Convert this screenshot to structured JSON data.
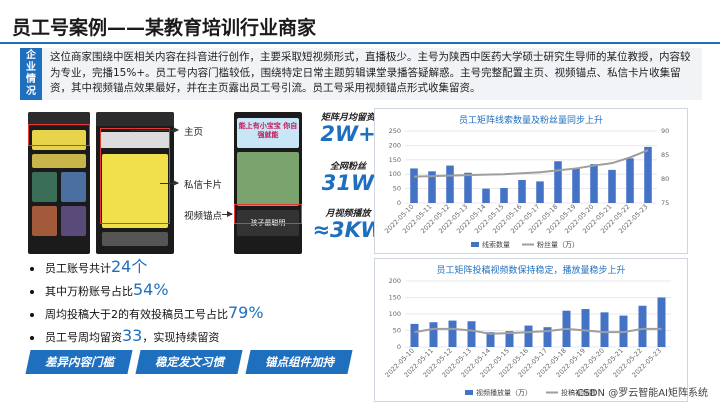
{
  "title": "员工号案例——某教育培训行业商家",
  "intro": {
    "tag_chars": [
      "企",
      "业",
      "情",
      "况"
    ],
    "text": "这位商家围绕中医相关内容在抖音进行创作，主要采取短视频形式，直播极少。主号为陕西中医药大学硕士研究生导师的某位教授，内容较为专业，完播15%+。员工号内容门槛较低，围绕特定日常主题剪辑课堂录播答疑解惑。主号完整配置主页、视频锚点、私信卡片收集留资，其中视频锚点效果最好，并在主页露出员工号引流。员工号采用视频锚点形式收集留资。"
  },
  "annotations": {
    "home": "主页",
    "dm_card": "私信卡片",
    "video_anchor": "视频锚点"
  },
  "phone_text": {
    "banner": "能上有小宝宝 你自强就能",
    "title": "孩子最聪明"
  },
  "stats": [
    {
      "label": "矩阵月均留资",
      "value": "2W+"
    },
    {
      "label": "全网粉丝",
      "value": "31W"
    },
    {
      "label": "月视频播放",
      "value": "≈3KW"
    }
  ],
  "bullets": [
    {
      "pre": "员工账号共计",
      "hl": "24个",
      "post": ""
    },
    {
      "pre": "其中万粉账号占比",
      "hl": "54%",
      "post": ""
    },
    {
      "pre": "周均投稿大于2的有效投稿员工号占比",
      "hl": "79%",
      "post": ""
    },
    {
      "pre": "员工号周均留资",
      "hl": "33",
      "post": "，实现持续留资"
    }
  ],
  "tags": [
    "差异内容门槛",
    "稳定发文习惯",
    "锚点组件加持"
  ],
  "colors": {
    "accent": "#1f6fbf",
    "line": "#9e9e9e",
    "bar": "#4472c4"
  },
  "watermark": "CSDN @罗云智能AI矩阵系统",
  "chart_data": [
    {
      "type": "bar",
      "title": "员工矩阵线索数量及粉丝量同步上升",
      "categories": [
        "2022-05-10",
        "2022-05-11",
        "2022-05-12",
        "2022-05-13",
        "2022-05-14",
        "2022-05-15",
        "2022-05-16",
        "2022-05-17",
        "2022-05-18",
        "2022-05-19",
        "2022-05-20",
        "2022-05-21",
        "2022-05-22",
        "2022-05-23"
      ],
      "series": [
        {
          "name": "线索数量",
          "kind": "bar",
          "axis": "left",
          "values": [
            120,
            110,
            130,
            105,
            50,
            52,
            80,
            75,
            145,
            120,
            135,
            115,
            155,
            195
          ]
        },
        {
          "name": "粉丝量（万）",
          "kind": "line",
          "axis": "right",
          "values": [
            80.5,
            80.6,
            80.7,
            80.8,
            80.9,
            81.0,
            81.2,
            81.4,
            81.8,
            82.2,
            82.8,
            83.3,
            84.5,
            86.0
          ]
        }
      ],
      "y_ticks": [
        "0",
        "50",
        "100",
        "150",
        "200",
        "250"
      ],
      "y2_ticks": [
        "75",
        "80",
        "85",
        "90"
      ],
      "ylim": [
        0,
        250
      ],
      "y2lim": [
        75,
        90
      ],
      "legend": "bottom"
    },
    {
      "type": "bar",
      "title": "员工矩阵投稿视频数保持稳定，播放量稳步上升",
      "categories": [
        "2022-05-10",
        "2022-05-11",
        "2022-05-12",
        "2022-05-13",
        "2022-05-14",
        "2022-05-15",
        "2022-05-16",
        "2022-05-17",
        "2022-05-18",
        "2022-05-19",
        "2022-05-20",
        "2022-05-21",
        "2022-05-22",
        "2022-05-23"
      ],
      "series": [
        {
          "name": "视频播放量（万）",
          "kind": "bar",
          "axis": "left",
          "values": [
            70,
            75,
            80,
            78,
            45,
            48,
            65,
            60,
            110,
            115,
            105,
            95,
            125,
            150
          ]
        },
        {
          "name": "投稿视频数",
          "kind": "line",
          "axis": "left",
          "values": [
            45,
            55,
            55,
            50,
            40,
            42,
            45,
            48,
            55,
            50,
            45,
            45,
            55,
            55
          ]
        }
      ],
      "y_ticks": [
        "0",
        "50",
        "100",
        "150",
        "200"
      ],
      "ylim": [
        0,
        200
      ],
      "legend": "bottom"
    }
  ]
}
